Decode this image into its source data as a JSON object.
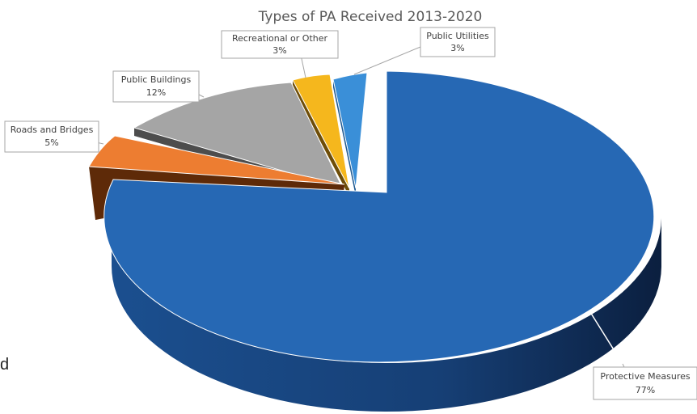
{
  "chart_data": {
    "type": "pie",
    "title": "Types of PA Received 2013-2020",
    "slices": [
      {
        "label": "Protective Measures",
        "pct_label": "77%",
        "value": 77,
        "color": "#2668b4"
      },
      {
        "label": "Roads and Bridges",
        "pct_label": "5%",
        "value": 5,
        "color": "#ed7d31"
      },
      {
        "label": "Public Buildings",
        "pct_label": "12%",
        "value": 12,
        "color": "#a5a5a5"
      },
      {
        "label": "Recreational or Other",
        "pct_label": "3%",
        "value": 3,
        "color": "#f5b71d"
      },
      {
        "label": "Public Utilities",
        "pct_label": "3%",
        "value": 3,
        "color": "#3a8fd8"
      }
    ]
  },
  "stray_text": "d"
}
